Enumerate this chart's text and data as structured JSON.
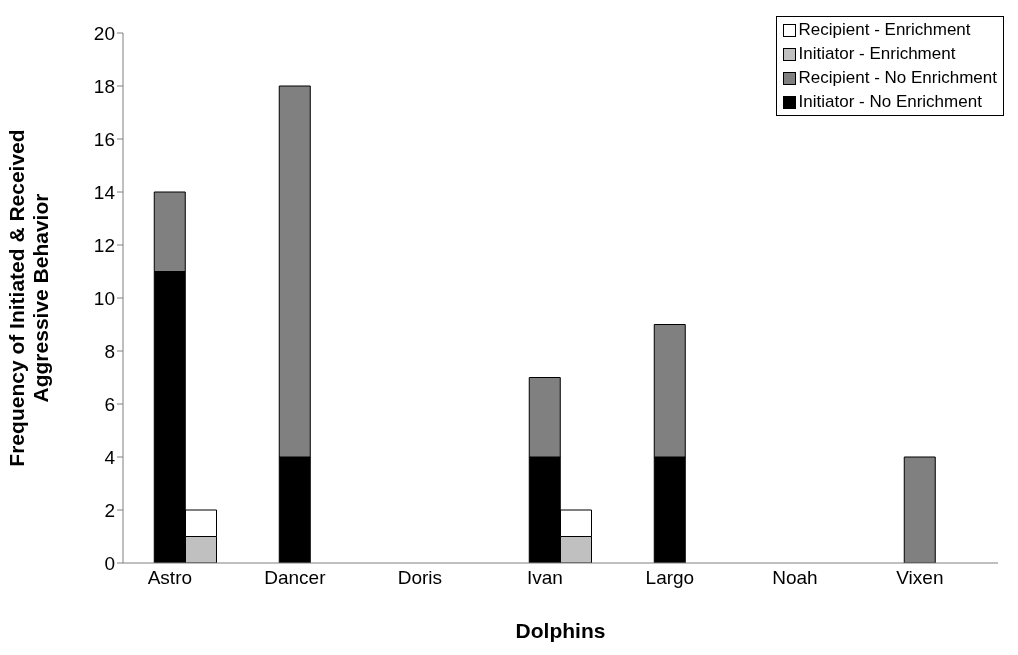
{
  "chart_data": {
    "type": "bar",
    "xlabel": "Dolphins",
    "ylabel": "Frequency of Initiated & Received Aggressive Behavior",
    "categories": [
      null,
      "Astro",
      null,
      null,
      null,
      "Dancer",
      null,
      null,
      null,
      "Doris",
      null,
      null,
      null,
      "Ivan",
      null,
      null,
      null,
      "Largo",
      null,
      null,
      null,
      "Noah",
      null,
      null,
      null,
      "Vixen",
      null,
      null
    ],
    "stacked": true,
    "legend": "top right",
    "grid": false,
    "ylim": [
      0,
      20
    ],
    "yticks": [
      0,
      2,
      4,
      6,
      8,
      10,
      12,
      14,
      16,
      18,
      20
    ],
    "series": [
      {
        "name": "Initiator - No Enrichment",
        "color": "#000000",
        "values": [
          null,
          11,
          null,
          null,
          null,
          4,
          null,
          null,
          null,
          0,
          null,
          null,
          null,
          4,
          null,
          null,
          null,
          4,
          null,
          null,
          null,
          0,
          null,
          null,
          null,
          0,
          null,
          null
        ]
      },
      {
        "name": "Recipient - No Enrichment",
        "color": "#808080",
        "values": [
          null,
          3,
          null,
          null,
          null,
          14,
          null,
          null,
          null,
          0,
          null,
          null,
          null,
          3,
          null,
          null,
          null,
          5,
          null,
          null,
          null,
          0,
          null,
          null,
          null,
          4,
          null,
          null
        ]
      },
      {
        "name": "Initiator - Enrichment",
        "color": "#c0c0c0",
        "values": [
          null,
          null,
          1,
          null,
          null,
          null,
          0,
          null,
          null,
          null,
          0,
          null,
          null,
          null,
          1,
          null,
          null,
          null,
          0,
          null,
          null,
          null,
          0,
          null,
          null,
          null,
          0,
          null
        ]
      },
      {
        "name": "Recipient - Enrichment",
        "color": "#ffffff",
        "values": [
          null,
          null,
          1,
          null,
          null,
          null,
          0,
          null,
          null,
          null,
          0,
          null,
          null,
          null,
          1,
          null,
          null,
          null,
          0,
          null,
          null,
          null,
          0,
          null,
          null,
          null,
          0,
          null
        ]
      }
    ]
  }
}
